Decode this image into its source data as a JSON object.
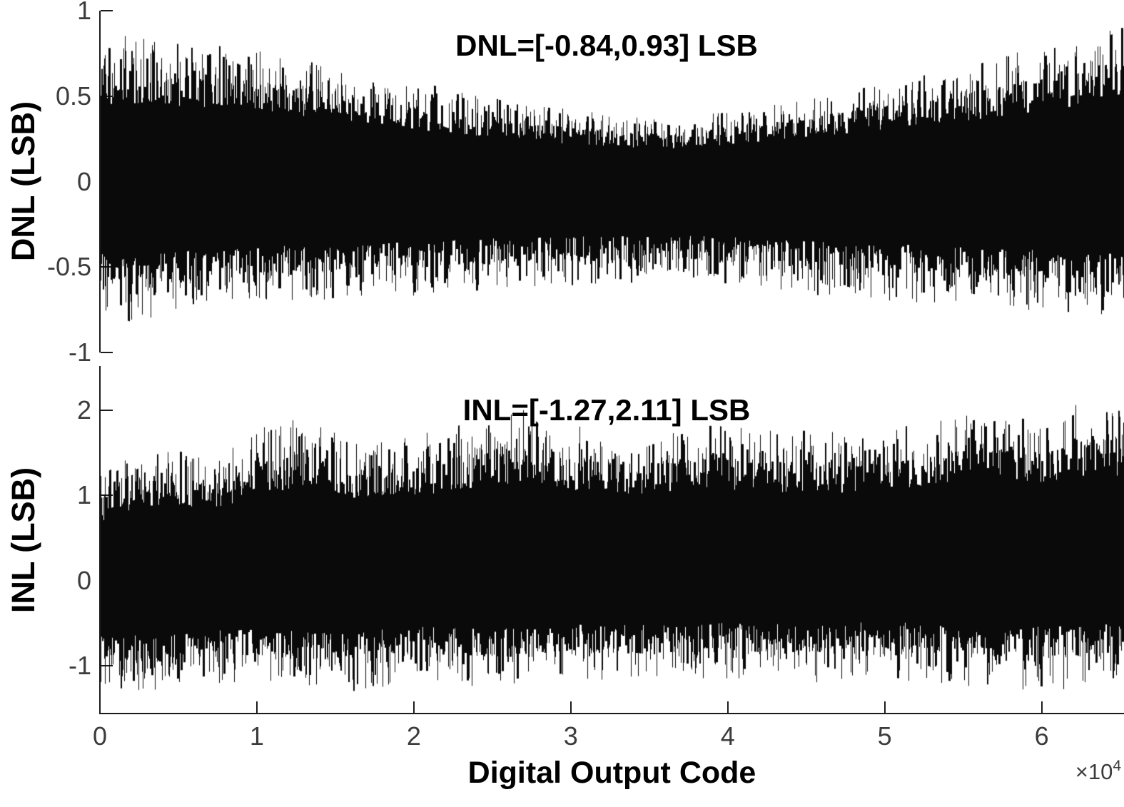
{
  "figure": {
    "background": "#ffffff",
    "axis_color": "#1c1c1c",
    "tick_label_color": "#3c3c3c",
    "data_color": "#0a0a0a",
    "text_color": "#000000"
  },
  "x_multiplier": {
    "base": "×10",
    "exp": "4"
  },
  "chart_data": [
    {
      "type": "bar",
      "name": "DNL",
      "annotation": "DNL=[-0.84,0.93] LSB",
      "ylabel": "DNL (LSB)",
      "ylim": [
        -1,
        1
      ],
      "yticks": [
        1,
        0.5,
        0,
        -0.5,
        -1
      ],
      "ytick_labels": [
        "1",
        "0.5",
        "0",
        "-0.5",
        "-1"
      ],
      "xlim_codes": [
        0,
        65536
      ],
      "x_units": "codes ×10^4",
      "value_range_lsb": [
        -0.84,
        0.93
      ],
      "grid": false,
      "upper_envelope_lsb": [
        [
          0,
          0.88
        ],
        [
          0.3,
          0.85
        ],
        [
          0.6,
          0.83
        ],
        [
          1,
          0.78
        ],
        [
          1.4,
          0.7
        ],
        [
          1.8,
          0.62
        ],
        [
          2.2,
          0.55
        ],
        [
          2.6,
          0.48
        ],
        [
          3,
          0.42
        ],
        [
          3.4,
          0.38
        ],
        [
          3.7,
          0.36
        ],
        [
          4,
          0.42
        ],
        [
          4.4,
          0.48
        ],
        [
          4.8,
          0.55
        ],
        [
          5.2,
          0.62
        ],
        [
          5.6,
          0.7
        ],
        [
          6,
          0.8
        ],
        [
          6.3,
          0.86
        ],
        [
          6.52,
          0.93
        ]
      ],
      "lower_envelope_lsb": [
        [
          0,
          -0.78
        ],
        [
          0.2,
          -0.84
        ],
        [
          0.6,
          -0.76
        ],
        [
          1,
          -0.73
        ],
        [
          1.5,
          -0.7
        ],
        [
          2,
          -0.67
        ],
        [
          2.5,
          -0.64
        ],
        [
          3,
          -0.62
        ],
        [
          3.5,
          -0.6
        ],
        [
          4,
          -0.62
        ],
        [
          4.5,
          -0.66
        ],
        [
          5,
          -0.7
        ],
        [
          5.5,
          -0.73
        ],
        [
          6,
          -0.77
        ],
        [
          6.52,
          -0.8
        ]
      ]
    },
    {
      "type": "bar",
      "name": "INL",
      "annotation": "INL=[-1.27,2.11] LSB",
      "ylabel": "INL (LSB)",
      "ylim": [
        -1.56,
        2.52
      ],
      "yticks": [
        2,
        1,
        0,
        -1
      ],
      "ytick_labels": [
        "2",
        "1",
        "0",
        "-1"
      ],
      "xlabel": "Digital Output Code",
      "xticks": [
        0,
        1,
        2,
        3,
        4,
        5,
        6
      ],
      "xtick_labels": [
        "0",
        "1",
        "2",
        "3",
        "4",
        "5",
        "6"
      ],
      "xlim_codes": [
        0,
        65536
      ],
      "x_units": "codes ×10^4",
      "value_range_lsb": [
        -1.27,
        2.11
      ],
      "grid": false,
      "center_envelope_lsb": [
        [
          0,
          0.05
        ],
        [
          1,
          0.12
        ],
        [
          2,
          0.18
        ],
        [
          3,
          0.2
        ],
        [
          4,
          0.22
        ],
        [
          5,
          0.25
        ],
        [
          6.52,
          0.3
        ]
      ],
      "upper_envelope_lsb": [
        [
          0,
          1.3
        ],
        [
          0.3,
          1.6
        ],
        [
          0.7,
          1.5
        ],
        [
          1,
          1.8
        ],
        [
          1.3,
          1.95
        ],
        [
          1.6,
          1.7
        ],
        [
          2,
          1.75
        ],
        [
          2.4,
          1.9
        ],
        [
          2.75,
          2.05
        ],
        [
          3.1,
          1.8
        ],
        [
          3.4,
          1.75
        ],
        [
          3.8,
          1.85
        ],
        [
          4.2,
          1.8
        ],
        [
          4.6,
          1.75
        ],
        [
          5,
          1.8
        ],
        [
          5.4,
          1.9
        ],
        [
          5.7,
          2.0
        ],
        [
          6,
          1.95
        ],
        [
          6.3,
          2.11
        ],
        [
          6.52,
          2.05
        ]
      ],
      "lower_envelope_lsb": [
        [
          0,
          -1.27
        ],
        [
          0.4,
          -1.3
        ],
        [
          0.8,
          -1.2
        ],
        [
          1.2,
          -1.25
        ],
        [
          1.6,
          -1.3
        ],
        [
          2,
          -1.2
        ],
        [
          2.5,
          -1.25
        ],
        [
          3,
          -1.15
        ],
        [
          3.5,
          -1.2
        ],
        [
          4,
          -1.15
        ],
        [
          4.5,
          -1.2
        ],
        [
          5,
          -1.15
        ],
        [
          5.5,
          -1.25
        ],
        [
          6,
          -1.3
        ],
        [
          6.52,
          -1.25
        ]
      ]
    }
  ]
}
